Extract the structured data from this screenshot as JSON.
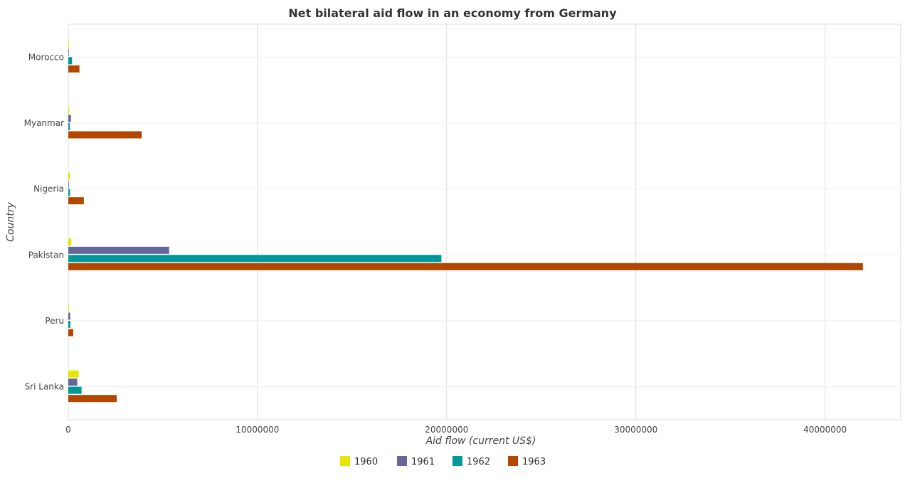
{
  "chart_data": {
    "type": "bar",
    "orientation": "horizontal",
    "title": "Net bilateral aid flow in an economy from Germany",
    "xlabel": "Aid flow (current US$)",
    "ylabel": "Country",
    "categories": [
      "Morocco",
      "Myanmar",
      "Nigeria",
      "Pakistan",
      "Peru",
      "Sri Lanka"
    ],
    "series": [
      {
        "name": "1960",
        "color": "#e6e600",
        "values": [
          10000,
          50000,
          90000,
          160000,
          40000,
          550000
        ]
      },
      {
        "name": "1961",
        "color": "#666699",
        "values": [
          20000,
          140000,
          20000,
          5330000,
          100000,
          470000
        ]
      },
      {
        "name": "1962",
        "color": "#009999",
        "values": [
          200000,
          80000,
          90000,
          19720000,
          110000,
          700000
        ]
      },
      {
        "name": "1963",
        "color": "#b34700",
        "values": [
          590000,
          3880000,
          820000,
          42000000,
          260000,
          2560000
        ]
      }
    ],
    "xlim": [
      0,
      44000000
    ],
    "xticks": [
      0,
      10000000,
      20000000,
      30000000,
      40000000
    ],
    "xtick_labels": [
      "0",
      "10000000",
      "20000000",
      "30000000",
      "40000000"
    ],
    "grid": true,
    "legend_position": "bottom"
  }
}
